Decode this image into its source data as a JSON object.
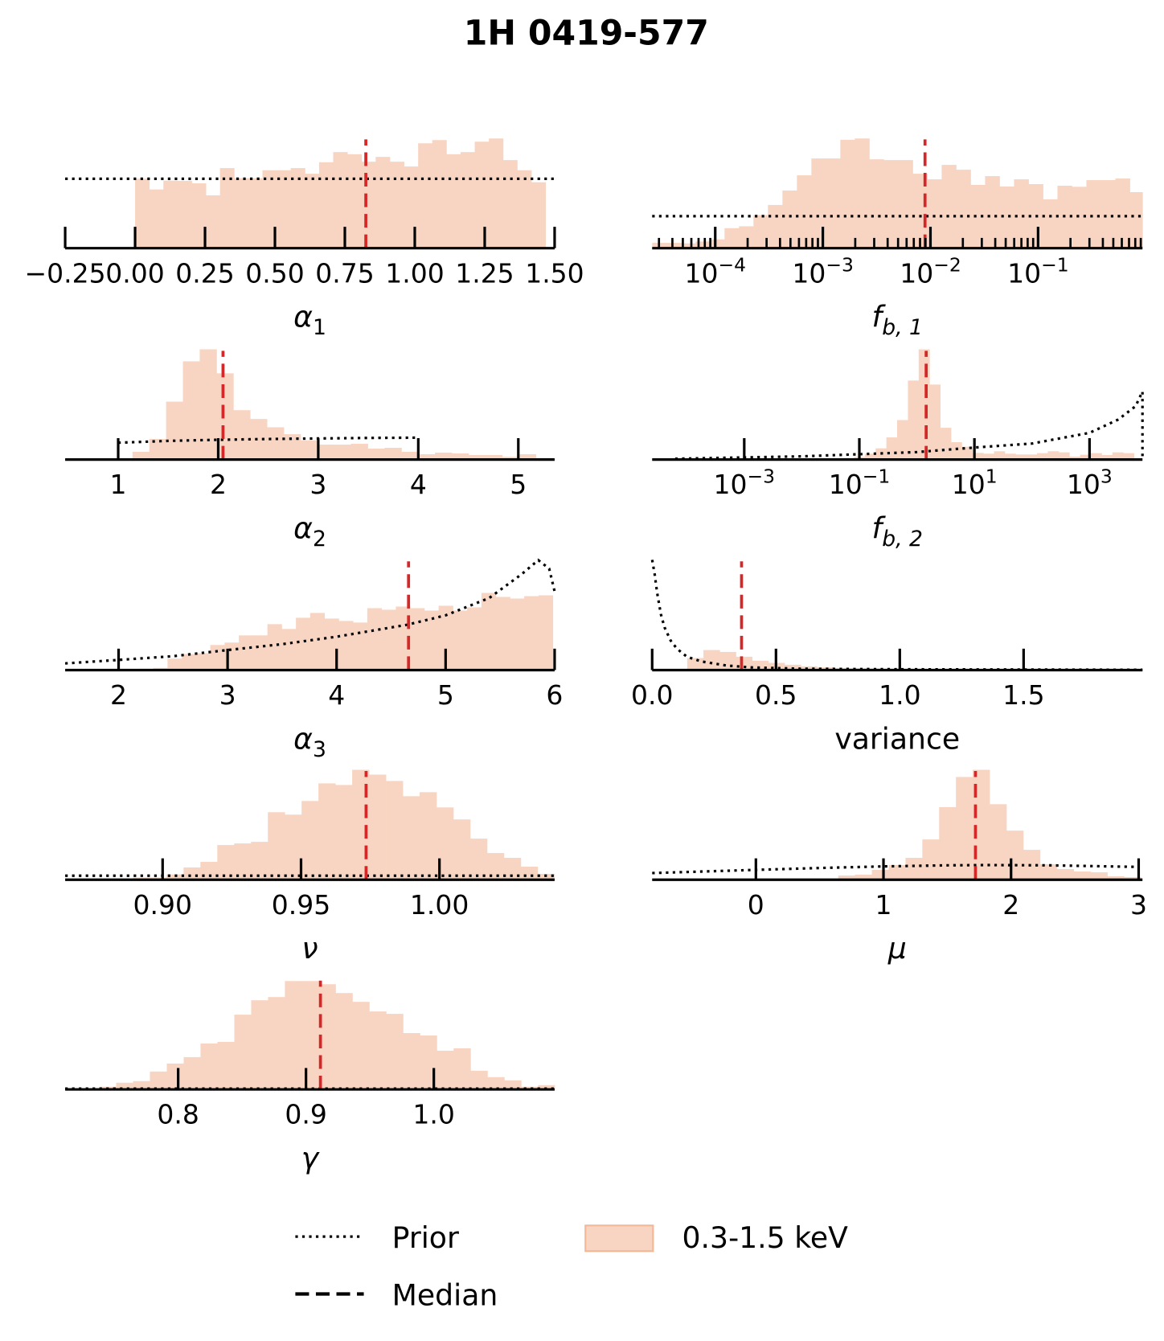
{
  "title": "1H 0419-577",
  "legend": {
    "prior": "Prior",
    "median": "Median",
    "posterior": "0.3-1.5 keV"
  },
  "colors": {
    "histogram": "#f8d5c2",
    "histogram_edge": "#f4b896",
    "median": "#d62728",
    "prior": "#000000"
  },
  "chart_data": [
    {
      "id": "alpha1",
      "type": "bar",
      "xscale": "linear",
      "xlabel": {
        "main": "α",
        "sub": "1",
        "italic": true
      },
      "xlim": [
        -0.25,
        1.5
      ],
      "ylim": [
        0,
        420
      ],
      "bin_start": 0.0,
      "bin_width": 0.0506,
      "values": [
        260,
        220,
        253,
        252,
        243,
        198,
        300,
        262,
        262,
        292,
        292,
        300,
        279,
        322,
        360,
        352,
        324,
        342,
        324,
        306,
        393,
        405,
        352,
        360,
        399,
        411,
        330,
        292,
        247
      ],
      "prior": [
        [
          -0.25,
          260
        ],
        [
          1.5,
          260
        ]
      ],
      "median": 0.825,
      "ticks": [
        {
          "v": -0.25,
          "label": "−0.25"
        },
        {
          "v": 0.0,
          "label": "0.00"
        },
        {
          "v": 0.25,
          "label": "0.25"
        },
        {
          "v": 0.5,
          "label": "0.50"
        },
        {
          "v": 0.75,
          "label": "0.75"
        },
        {
          "v": 1.0,
          "label": "1.00"
        },
        {
          "v": 1.25,
          "label": "1.25"
        },
        {
          "v": 1.5,
          "label": "1.50"
        }
      ]
    },
    {
      "id": "fb1",
      "type": "bar",
      "xscale": "log",
      "xlabel": {
        "main": "f",
        "sub": "b, 1",
        "italic": true
      },
      "xlim": [
        -4.586,
        -0.03
      ],
      "ylim": [
        0,
        420
      ],
      "bin_start": -4.586,
      "bin_width": 0.1345,
      "values": [
        20,
        20,
        18,
        25,
        33,
        75,
        82,
        124,
        162,
        216,
        273,
        336,
        336,
        406,
        411,
        333,
        330,
        330,
        279,
        258,
        312,
        294,
        237,
        270,
        231,
        258,
        240,
        183,
        234,
        230,
        255,
        255,
        261,
        210
      ],
      "prior": [
        [
          -4.586,
          120
        ],
        [
          -0.03,
          120
        ]
      ],
      "median": 0.0089,
      "minor_ticks": true,
      "ticks": [
        {
          "v": -4,
          "base": "10",
          "exp": "−4"
        },
        {
          "v": -3,
          "base": "10",
          "exp": "−3"
        },
        {
          "v": -2,
          "base": "10",
          "exp": "−2"
        },
        {
          "v": -1,
          "base": "10",
          "exp": "−1"
        }
      ]
    },
    {
      "id": "alpha2",
      "type": "bar",
      "xscale": "linear",
      "xlabel": {
        "main": "α",
        "sub": "2",
        "italic": true
      },
      "xlim": [
        0.47,
        5.363
      ],
      "ylim": [
        0,
        420
      ],
      "bin_start": 0.807,
      "bin_width": 0.168,
      "values": [
        3,
        5,
        29,
        77,
        217,
        368,
        413,
        323,
        185,
        152,
        121,
        95,
        72,
        56,
        56,
        59,
        41,
        44,
        29,
        20,
        26,
        23,
        17,
        17,
        10,
        20,
        6
      ],
      "prior": [
        [
          1,
          63
        ],
        [
          1.5,
          70
        ],
        [
          2,
          74
        ],
        [
          2.5,
          77
        ],
        [
          3,
          79
        ],
        [
          3.5,
          81
        ],
        [
          4,
          82
        ]
      ],
      "median": 2.048,
      "ticks": [
        {
          "v": 1,
          "label": "1"
        },
        {
          "v": 2,
          "label": "2"
        },
        {
          "v": 3,
          "label": "3"
        },
        {
          "v": 4,
          "label": "4"
        },
        {
          "v": 5,
          "label": "5"
        }
      ]
    },
    {
      "id": "fb2",
      "type": "bar",
      "xscale": "log",
      "xlabel": {
        "main": "f",
        "sub": "b, 2",
        "italic": true
      },
      "xlim": [
        -4.6,
        3.92
      ],
      "ylim": [
        0,
        420
      ],
      "bin_start": -1.839,
      "bin_width": 0.187,
      "values": [
        4,
        4,
        5,
        6,
        10,
        22,
        42,
        83,
        148,
        296,
        413,
        281,
        119,
        65,
        48,
        25,
        22,
        31,
        22,
        19,
        19,
        24,
        31,
        27,
        11,
        18,
        24,
        17,
        27,
        24
      ],
      "prior": [
        [
          -4.2,
          3
        ],
        [
          -3,
          8
        ],
        [
          -2,
          12
        ],
        [
          -1,
          20
        ],
        [
          0,
          28
        ],
        [
          1,
          45
        ],
        [
          2,
          60
        ],
        [
          3,
          100
        ],
        [
          3.5,
          150
        ],
        [
          3.8,
          200
        ],
        [
          3.92,
          255
        ],
        [
          3.92,
          0
        ]
      ],
      "median": 1.45,
      "ticks": [
        {
          "v": -3,
          "base": "10",
          "exp": "−3"
        },
        {
          "v": -1,
          "base": "10",
          "exp": "−1"
        },
        {
          "v": 1,
          "base": "10",
          "exp": "1"
        },
        {
          "v": 3,
          "base": "10",
          "exp": "3"
        }
      ]
    },
    {
      "id": "alpha3",
      "type": "bar",
      "xscale": "linear",
      "xlabel": {
        "main": "α",
        "sub": "3",
        "italic": true
      },
      "xlim": [
        1.51,
        6.0
      ],
      "ylim": [
        0,
        420
      ],
      "bin_start": 2.187,
      "bin_width": 0.1309,
      "values": [
        5,
        8,
        43,
        60,
        63,
        94,
        103,
        130,
        130,
        172,
        154,
        196,
        214,
        193,
        184,
        178,
        232,
        226,
        238,
        232,
        223,
        241,
        223,
        235,
        289,
        274,
        268,
        277,
        280
      ],
      "prior": [
        [
          1.51,
          25
        ],
        [
          2,
          38
        ],
        [
          2.5,
          52
        ],
        [
          3,
          75
        ],
        [
          3.5,
          97
        ],
        [
          4,
          125
        ],
        [
          4.65,
          170
        ],
        [
          5,
          205
        ],
        [
          5.4,
          270
        ],
        [
          5.7,
          360
        ],
        [
          5.85,
          412
        ],
        [
          5.95,
          380
        ],
        [
          6,
          295
        ]
      ],
      "median": 4.66,
      "ticks": [
        {
          "v": 2,
          "label": "2"
        },
        {
          "v": 3,
          "label": "3"
        },
        {
          "v": 4,
          "label": "4"
        },
        {
          "v": 5,
          "label": "5"
        },
        {
          "v": 6,
          "label": "6"
        }
      ]
    },
    {
      "id": "variance",
      "type": "bar",
      "xscale": "linear",
      "xlabel": {
        "main": "variance",
        "sub": "",
        "italic": false
      },
      "xlim": [
        0,
        1.98
      ],
      "ylim": [
        0,
        420
      ],
      "bin_start": 0.076,
      "bin_width": 0.0655,
      "values": [
        4,
        45,
        75,
        68,
        50,
        35,
        27,
        20,
        14,
        10,
        8,
        7,
        6,
        5,
        3,
        3,
        2,
        2,
        2,
        2,
        2,
        1.5,
        1.5,
        1.5,
        1,
        1,
        1,
        1,
        1
      ],
      "prior": [
        [
          0,
          413
        ],
        [
          0.01,
          360
        ],
        [
          0.02,
          290
        ],
        [
          0.035,
          210
        ],
        [
          0.05,
          160
        ],
        [
          0.075,
          110
        ],
        [
          0.1,
          80
        ],
        [
          0.14,
          50
        ],
        [
          0.2,
          32
        ],
        [
          0.3,
          17
        ],
        [
          0.4,
          10
        ],
        [
          0.6,
          5
        ],
        [
          1.0,
          3
        ],
        [
          1.98,
          1
        ]
      ],
      "median": 0.361,
      "ticks": [
        {
          "v": 0.0,
          "label": "0.0"
        },
        {
          "v": 0.5,
          "label": "0.5"
        },
        {
          "v": 1.0,
          "label": "1.0"
        },
        {
          "v": 1.5,
          "label": "1.5"
        }
      ]
    },
    {
      "id": "nu",
      "type": "bar",
      "xscale": "linear",
      "xlabel": {
        "main": "ν",
        "sub": "",
        "italic": true
      },
      "xlim": [
        0.8648,
        1.0416
      ],
      "ylim": [
        0,
        420
      ],
      "bin_start": 0.8893,
      "bin_width": 0.00609,
      "values": [
        8,
        8,
        20,
        46,
        67,
        130,
        136,
        142,
        253,
        244,
        295,
        361,
        355,
        412,
        394,
        370,
        313,
        328,
        271,
        226,
        154,
        100,
        82,
        49,
        22
      ],
      "prior": [
        [
          0.8648,
          15
        ],
        [
          1.0416,
          15
        ]
      ],
      "median": 0.9735,
      "ticks": [
        {
          "v": 0.9,
          "label": "0.90"
        },
        {
          "v": 0.95,
          "label": "0.95"
        },
        {
          "v": 1.0,
          "label": "1.00"
        }
      ]
    },
    {
      "id": "mu",
      "type": "bar",
      "xscale": "linear",
      "xlabel": {
        "main": "μ",
        "sub": "",
        "italic": true
      },
      "xlim": [
        -0.813,
        3.03
      ],
      "ylim": [
        0,
        420
      ],
      "bin_start": 0.25,
      "bin_width": 0.1318,
      "values": [
        3,
        3,
        3,
        16,
        19,
        37,
        55,
        82,
        151,
        272,
        385,
        412,
        283,
        184,
        112,
        58,
        40,
        31,
        28,
        13,
        10
      ],
      "prior": [
        [
          -0.813,
          25
        ],
        [
          0,
          37
        ],
        [
          0.5,
          44
        ],
        [
          1,
          50
        ],
        [
          1.5,
          54
        ],
        [
          1.8,
          55
        ],
        [
          2.3,
          54
        ],
        [
          3,
          48
        ]
      ],
      "median": 1.721,
      "ticks": [
        {
          "v": 0,
          "label": "0"
        },
        {
          "v": 1,
          "label": "1"
        },
        {
          "v": 2,
          "label": "2"
        },
        {
          "v": 3,
          "label": "3"
        }
      ]
    },
    {
      "id": "gamma",
      "type": "bar",
      "xscale": "linear",
      "xlabel": {
        "main": "γ",
        "sub": "",
        "italic": true
      },
      "xlim": [
        0.7116,
        1.0945
      ],
      "ylim": [
        0,
        420
      ],
      "bin_start": 0.7119,
      "bin_width": 0.0132,
      "values": [
        4,
        3,
        10,
        25,
        31,
        67,
        97,
        121,
        172,
        178,
        280,
        334,
        346,
        406,
        406,
        394,
        361,
        328,
        292,
        283,
        211,
        202,
        145,
        154,
        70,
        46,
        34,
        10,
        16
      ],
      "prior": [
        [
          0.7116,
          3
        ],
        [
          1.0945,
          3
        ]
      ],
      "median": 0.9113,
      "ticks": [
        {
          "v": 0.8,
          "label": "0.8"
        },
        {
          "v": 0.9,
          "label": "0.9"
        },
        {
          "v": 1.0,
          "label": "1.0"
        }
      ]
    }
  ]
}
